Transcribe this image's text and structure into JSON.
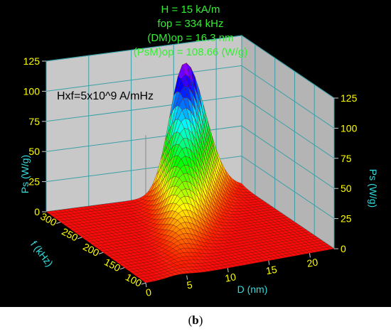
{
  "figure": {
    "caption_open": "(",
    "caption_letter": "b",
    "caption_close": ")"
  },
  "chart_data": {
    "type": "surface3d",
    "annotations": [
      "H = 15 kA/m",
      "fop = 334 kHz",
      "(DM)op = 16.3 nm",
      "(PsM)op = 108.66 (W/g)"
    ],
    "inset_label": "Hxf=5x10^9 A/mHz",
    "x_axis": {
      "label": "D (nm)",
      "range": [
        0,
        23
      ],
      "ticks": [
        0,
        5,
        10,
        15,
        20
      ]
    },
    "y_axis": {
      "label": "f (kHz)",
      "range": [
        100,
        334
      ],
      "ticks": [
        100,
        150,
        200,
        250,
        300
      ]
    },
    "z_axis": {
      "label": "Ps (W/g)",
      "range": [
        0,
        125
      ],
      "ticks": [
        0,
        25,
        50,
        75,
        100,
        125
      ]
    },
    "peak": {
      "D": 16.3,
      "f": 334,
      "Ps": 108.66
    },
    "model": "Ps(D,f) = PsM(f) * exp(-((D - DM(f)) / w)^2 on the high side) with rapid rise below DM; colormap red (0) to violet (max)",
    "colors": {
      "background": "#000000",
      "wall": "#c8c8c8",
      "grid": "#3aa0a8",
      "annotation": "#33ee33",
      "tick_label": "#ffff00",
      "axis_label": "#33dddd",
      "floor": "#ff2a1a"
    }
  }
}
